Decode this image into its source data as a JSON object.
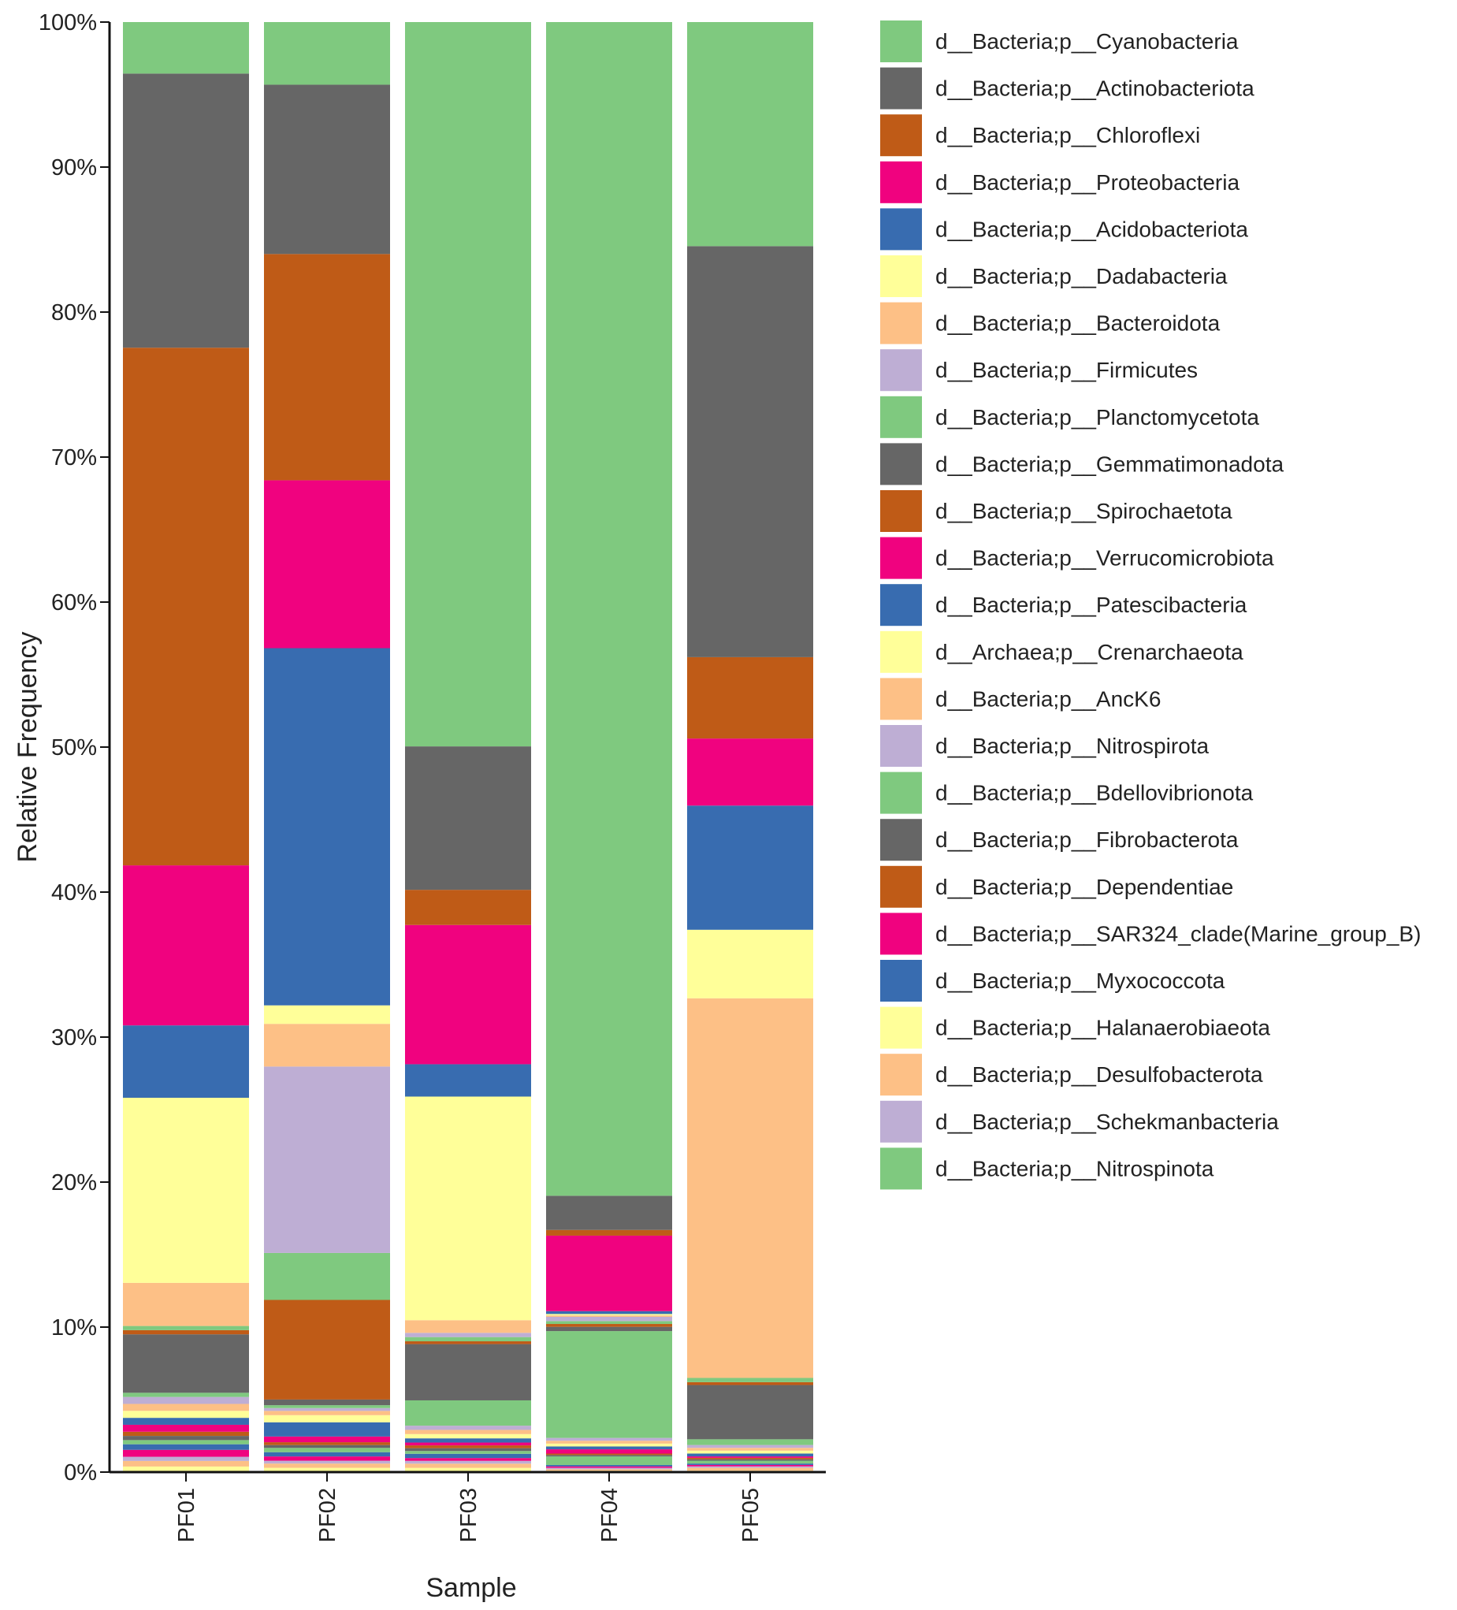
{
  "chart_data": {
    "type": "bar",
    "stacked": true,
    "xlabel": "Sample",
    "ylabel": "Relative Frequency",
    "ylim": [
      0,
      100
    ],
    "yticks": [
      "0%",
      "10%",
      "20%",
      "30%",
      "40%",
      "50%",
      "60%",
      "70%",
      "80%",
      "90%",
      "100%"
    ],
    "categories": [
      "PF01",
      "PF02",
      "PF03",
      "PF04",
      "PF05"
    ],
    "legend_position": "right",
    "series": [
      {
        "name": "d__Archaea;p__Crenarchaeota",
        "color": "#FFFF99",
        "values": [
          0.4,
          0.3,
          0.3,
          0.1,
          0.1
        ]
      },
      {
        "name": "d__Bacteria;p__AncK6",
        "color": "#FDC086",
        "values": [
          0.4,
          0.3,
          0.3,
          0.1,
          0.2
        ]
      },
      {
        "name": "d__Bacteria;p__Nitrospirota",
        "color": "#BEAED4",
        "values": [
          0.3,
          0.2,
          0.2,
          0.1,
          0.1
        ]
      },
      {
        "name": "d__Bacteria;p__Verrucomicrobiota",
        "color": "#F0027F",
        "values": [
          0.5,
          0.3,
          0.2,
          0.1,
          0.1
        ]
      },
      {
        "name": "d__Bacteria;p__Patescibacteria",
        "color": "#386CB0",
        "values": [
          0.4,
          0.3,
          0.3,
          0.1,
          0.1
        ]
      },
      {
        "name": "d__Bacteria;p__Bdellovibrionota",
        "color": "#7FC97F",
        "values": [
          0.3,
          0.3,
          0.2,
          0.6,
          0.2
        ]
      },
      {
        "name": "d__Bacteria;p__Fibrobacterota",
        "color": "#666666",
        "values": [
          0.3,
          0.2,
          0.2,
          0.1,
          0.1
        ]
      },
      {
        "name": "d__Bacteria;p__Dependentiae",
        "color": "#BF5B17",
        "values": [
          0.3,
          0.2,
          0.2,
          0.1,
          0.1
        ]
      },
      {
        "name": "d__Bacteria;p__SAR324_clade(Marine_group_B)",
        "color": "#F0027F",
        "values": [
          0.5,
          0.4,
          0.2,
          0.3,
          0.1
        ]
      },
      {
        "name": "d__Bacteria;p__Myxococcota",
        "color": "#386CB0",
        "values": [
          0.5,
          1.0,
          0.3,
          0.2,
          0.2
        ]
      },
      {
        "name": "d__Bacteria;p__Halanaerobiaeota",
        "color": "#FFFF99",
        "values": [
          0.5,
          0.5,
          0.3,
          0.2,
          0.2
        ]
      },
      {
        "name": "d__Bacteria;p__Desulfobacterota",
        "color": "#FDC086",
        "values": [
          0.5,
          0.3,
          0.3,
          0.2,
          0.2
        ]
      },
      {
        "name": "d__Bacteria;p__Schekmanbacteria",
        "color": "#BEAED4",
        "values": [
          0.5,
          0.2,
          0.3,
          0.2,
          0.2
        ]
      },
      {
        "name": "d__Bacteria;p__Nitrospinota",
        "color": "#7FC97F",
        "values": [
          0.3,
          0.2,
          1.8,
          7.5,
          0.4
        ]
      },
      {
        "name": "d__Bacteria;p__Gemmatimonadota",
        "color": "#666666",
        "values": [
          4.2,
          0.4,
          4.0,
          0.3,
          3.8
        ]
      },
      {
        "name": "d__Bacteria;p__Spirochaetota",
        "color": "#BF5B17",
        "values": [
          0.3,
          7.0,
          0.2,
          0.2,
          0.2
        ]
      },
      {
        "name": "d__Bacteria;p__Planctomycetota",
        "color": "#7FC97F",
        "values": [
          0.3,
          3.3,
          0.3,
          0.2,
          0.3
        ]
      },
      {
        "name": "d__Bacteria;p__Firmicutes",
        "color": "#BEAED4",
        "values": [
          0.0,
          13.1,
          0.3,
          0.3,
          0.0
        ]
      },
      {
        "name": "d__Bacteria;p__Bacteroidota",
        "color": "#FDC086",
        "values": [
          3.1,
          3.0,
          0.9,
          0.1,
          26.6
        ]
      },
      {
        "name": "d__Bacteria;p__Dadabacteria",
        "color": "#FFFF99",
        "values": [
          13.3,
          1.3,
          15.9,
          0.1,
          4.8
        ]
      },
      {
        "name": "d__Bacteria;p__Acidobacteriota",
        "color": "#386CB0",
        "values": [
          5.2,
          25.1,
          2.3,
          0.2,
          8.7
        ]
      },
      {
        "name": "d__Bacteria;p__Proteobacteria",
        "color": "#F0027F",
        "values": [
          11.5,
          11.8,
          9.9,
          5.3,
          4.7
        ]
      },
      {
        "name": "d__Bacteria;p__Chloroflexi",
        "color": "#BF5B17",
        "values": [
          37.2,
          15.9,
          2.5,
          0.4,
          5.7
        ]
      },
      {
        "name": "d__Bacteria;p__Actinobacteriota",
        "color": "#666666",
        "values": [
          19.7,
          11.9,
          10.2,
          2.4,
          28.8
        ]
      },
      {
        "name": "d__Bacteria;p__Cyanobacteria",
        "color": "#7FC97F",
        "values": [
          3.7,
          4.4,
          51.5,
          82.4,
          15.7
        ]
      }
    ],
    "legend": [
      {
        "label": "d__Bacteria;p__Cyanobacteria",
        "color": "#7FC97F"
      },
      {
        "label": "d__Bacteria;p__Actinobacteriota",
        "color": "#666666"
      },
      {
        "label": "d__Bacteria;p__Chloroflexi",
        "color": "#BF5B17"
      },
      {
        "label": "d__Bacteria;p__Proteobacteria",
        "color": "#F0027F"
      },
      {
        "label": "d__Bacteria;p__Acidobacteriota",
        "color": "#386CB0"
      },
      {
        "label": "d__Bacteria;p__Dadabacteria",
        "color": "#FFFF99"
      },
      {
        "label": "d__Bacteria;p__Bacteroidota",
        "color": "#FDC086"
      },
      {
        "label": "d__Bacteria;p__Firmicutes",
        "color": "#BEAED4"
      },
      {
        "label": "d__Bacteria;p__Planctomycetota",
        "color": "#7FC97F"
      },
      {
        "label": "d__Bacteria;p__Gemmatimonadota",
        "color": "#666666"
      },
      {
        "label": "d__Bacteria;p__Spirochaetota",
        "color": "#BF5B17"
      },
      {
        "label": "d__Bacteria;p__Verrucomicrobiota",
        "color": "#F0027F"
      },
      {
        "label": "d__Bacteria;p__Patescibacteria",
        "color": "#386CB0"
      },
      {
        "label": "d__Archaea;p__Crenarchaeota",
        "color": "#FFFF99"
      },
      {
        "label": "d__Bacteria;p__AncK6",
        "color": "#FDC086"
      },
      {
        "label": "d__Bacteria;p__Nitrospirota",
        "color": "#BEAED4"
      },
      {
        "label": "d__Bacteria;p__Bdellovibrionota",
        "color": "#7FC97F"
      },
      {
        "label": "d__Bacteria;p__Fibrobacterota",
        "color": "#666666"
      },
      {
        "label": "d__Bacteria;p__Dependentiae",
        "color": "#BF5B17"
      },
      {
        "label": "d__Bacteria;p__SAR324_clade(Marine_group_B)",
        "color": "#F0027F"
      },
      {
        "label": "d__Bacteria;p__Myxococcota",
        "color": "#386CB0"
      },
      {
        "label": "d__Bacteria;p__Halanaerobiaeota",
        "color": "#FFFF99"
      },
      {
        "label": "d__Bacteria;p__Desulfobacterota",
        "color": "#FDC086"
      },
      {
        "label": "d__Bacteria;p__Schekmanbacteria",
        "color": "#BEAED4"
      },
      {
        "label": "d__Bacteria;p__Nitrospinota",
        "color": "#7FC97F"
      }
    ]
  }
}
